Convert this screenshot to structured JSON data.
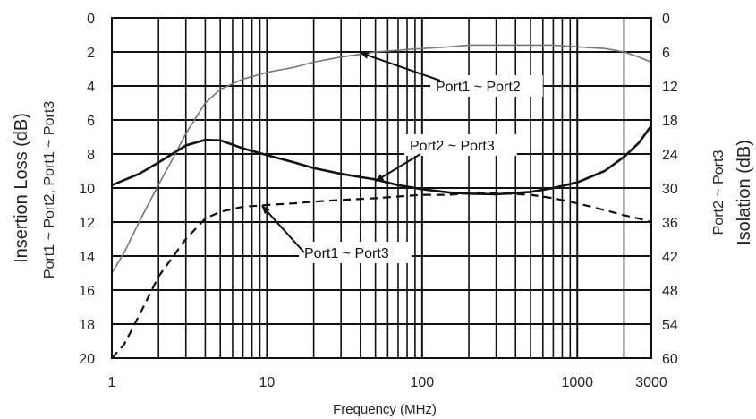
{
  "chart_data": {
    "type": "line",
    "xlabel": "Frequency (MHz)",
    "ylabel_left_line1": "Insertion Loss (dB)",
    "ylabel_left_line2": "Port1 ~ Port2, Port1 ~ Port3",
    "ylabel_right_line1": "Port2 ~ Port3",
    "ylabel_right_line2": "Isolation (dB)",
    "x_scale": "log",
    "xlim": [
      1,
      3000
    ],
    "x_ticks": [
      1,
      10,
      100,
      1000,
      3000
    ],
    "x_tick_labels": [
      "1",
      "10",
      "100",
      "1000",
      "3000"
    ],
    "ylim_left": [
      0,
      20
    ],
    "y_left_inverted": true,
    "y_left_ticks": [
      0,
      2,
      4,
      6,
      8,
      10,
      12,
      14,
      16,
      18,
      20
    ],
    "y_left_tick_labels": [
      "0",
      "2",
      "4",
      "6",
      "8",
      "10",
      "12",
      "14",
      "16",
      "18",
      "20"
    ],
    "ylim_right": [
      0,
      60
    ],
    "y_right_inverted": true,
    "y_right_ticks": [
      0,
      6,
      12,
      18,
      24,
      30,
      36,
      42,
      48,
      54,
      60
    ],
    "y_right_tick_labels": [
      "0",
      "6",
      "12",
      "18",
      "24",
      "30",
      "36",
      "42",
      "48",
      "54",
      "60"
    ],
    "grid": true,
    "series": [
      {
        "name": "Port1 ~ Port2",
        "axis": "left",
        "style": "thin-gray",
        "x": [
          1,
          1.2,
          1.5,
          2,
          2.5,
          3,
          4,
          5,
          7,
          10,
          15,
          20,
          30,
          50,
          70,
          100,
          150,
          200,
          300,
          500,
          700,
          1000,
          1500,
          2000,
          2500,
          3000
        ],
        "values": [
          15,
          13.8,
          12,
          9.8,
          8.2,
          6.8,
          5,
          4.2,
          3.6,
          3.2,
          2.9,
          2.6,
          2.3,
          2.0,
          1.9,
          1.8,
          1.7,
          1.6,
          1.6,
          1.6,
          1.6,
          1.7,
          1.8,
          2.0,
          2.3,
          2.6
        ]
      },
      {
        "name": "Port2 ~ Port3",
        "axis": "right",
        "style": "solid-black",
        "x": [
          1,
          1.5,
          2,
          3,
          4,
          5,
          7,
          10,
          15,
          20,
          30,
          50,
          70,
          100,
          150,
          200,
          300,
          500,
          700,
          1000,
          1500,
          2000,
          2500,
          3000
        ],
        "values": [
          29.5,
          27.5,
          25.5,
          22.5,
          21.5,
          21.6,
          23,
          24.2,
          25.5,
          26.5,
          27.5,
          28.5,
          29.5,
          30.2,
          30.8,
          31.0,
          31.1,
          30.7,
          30,
          29,
          27,
          24.5,
          22,
          19
        ]
      },
      {
        "name": "Port1 ~ Port3",
        "axis": "left",
        "style": "dashed-black",
        "x": [
          1,
          1.2,
          1.5,
          2,
          3,
          4,
          5,
          7,
          10,
          15,
          20,
          30,
          50,
          70,
          100,
          150,
          200,
          300,
          500,
          700,
          1000,
          1500,
          2000,
          2500,
          3000
        ],
        "values": [
          20,
          19.2,
          17.5,
          15.2,
          13,
          11.8,
          11.4,
          11.1,
          11.0,
          10.9,
          10.8,
          10.7,
          10.6,
          10.5,
          10.4,
          10.4,
          10.3,
          10.3,
          10.4,
          10.6,
          10.9,
          11.3,
          11.6,
          11.8,
          12.0
        ]
      }
    ],
    "annotations": [
      {
        "text": "Port1 ~ Port2",
        "series": "Port1 ~ Port2"
      },
      {
        "text": "Port2 ~ Port3",
        "series": "Port2 ~ Port3"
      },
      {
        "text": "Port1 ~ Port3",
        "series": "Port1 ~ Port3"
      }
    ]
  }
}
